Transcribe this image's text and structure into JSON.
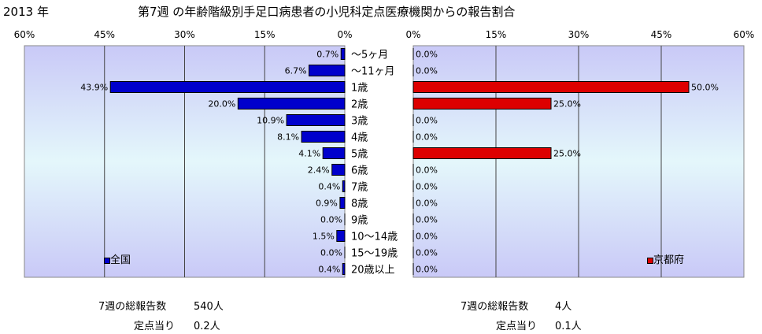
{
  "header": {
    "year": "2013 年",
    "title": "第7週 の年齢階級別手足口病患者の小児科定点医療機関からの報告割合"
  },
  "chart_data": {
    "type": "bar",
    "orientation": "horizontal",
    "categories": [
      "～5ヶ月",
      "～11ヶ月",
      "1歳",
      "2歳",
      "3歳",
      "4歳",
      "5歳",
      "6歳",
      "7歳",
      "8歳",
      "9歳",
      "10～14歳",
      "15～19歳",
      "20歳以上"
    ],
    "series": [
      {
        "name": "全国",
        "color": "#0000cc",
        "values": [
          0.7,
          6.7,
          43.9,
          20.0,
          10.9,
          8.1,
          4.1,
          2.4,
          0.4,
          0.9,
          0.0,
          1.5,
          0.0,
          0.4
        ],
        "labels": [
          "0.7%",
          "6.7%",
          "43.9%",
          "20.0%",
          "10.9%",
          "8.1%",
          "4.1%",
          "2.4%",
          "0.4%",
          "0.9%",
          "0.0%",
          "1.5%",
          "0.0%",
          "0.4%"
        ]
      },
      {
        "name": "京都府",
        "color": "#dd0000",
        "values": [
          0.0,
          0.0,
          50.0,
          25.0,
          0.0,
          0.0,
          25.0,
          0.0,
          0.0,
          0.0,
          0.0,
          0.0,
          0.0,
          0.0
        ],
        "labels": [
          "0.0%",
          "0.0%",
          "50.0%",
          "25.0%",
          "0.0%",
          "0.0%",
          "25.0%",
          "0.0%",
          "0.0%",
          "0.0%",
          "0.0%",
          "0.0%",
          "0.0%",
          "0.0%"
        ]
      }
    ],
    "xlim": [
      0,
      60
    ],
    "ticks_left": [
      "60%",
      "45%",
      "30%",
      "15%",
      "0%"
    ],
    "ticks_right": [
      "0%",
      "15%",
      "30%",
      "45%",
      "60%"
    ],
    "grid": true
  },
  "summary": {
    "left": {
      "total_label": "7週の総報告数",
      "total_value": "540人",
      "per_label": "定点当り",
      "per_value": "0.2人"
    },
    "right": {
      "total_label": "7週の総報告数",
      "total_value": "4人",
      "per_label": "定点当り",
      "per_value": "0.1人"
    }
  }
}
